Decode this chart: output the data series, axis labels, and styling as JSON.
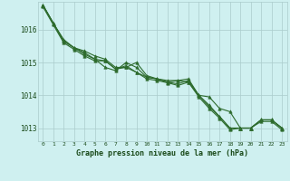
{
  "background_color": "#cff0f0",
  "grid_color": "#aacccc",
  "line_color": "#2d6b2d",
  "marker_color": "#2d6b2d",
  "xlabel": "Graphe pression niveau de la mer (hPa)",
  "xlabel_color": "#1a4a1a",
  "ylabel_color": "#1a4a1a",
  "xlim": [
    -0.5,
    23.5
  ],
  "ylim": [
    1012.6,
    1016.85
  ],
  "yticks": [
    1013,
    1014,
    1015,
    1016
  ],
  "xticks": [
    0,
    1,
    2,
    3,
    4,
    5,
    6,
    7,
    8,
    9,
    10,
    11,
    12,
    13,
    14,
    15,
    16,
    17,
    18,
    19,
    20,
    21,
    22,
    23
  ],
  "series": [
    [
      1016.75,
      1016.2,
      1015.7,
      1015.45,
      1015.35,
      1015.2,
      1015.1,
      1014.85,
      1014.85,
      1015.0,
      1014.6,
      1014.5,
      1014.45,
      1014.45,
      1014.4,
      1014.0,
      1013.95,
      1013.6,
      1013.5,
      1013.0,
      1013.0,
      1013.25,
      1013.25,
      1013.0
    ],
    [
      1016.75,
      1016.2,
      1015.65,
      1015.45,
      1015.25,
      1015.1,
      1015.05,
      1014.8,
      1014.9,
      1014.7,
      1014.55,
      1014.5,
      1014.4,
      1014.35,
      1014.45,
      1014.0,
      1013.7,
      1013.35,
      1013.0,
      1013.0,
      1013.0,
      1013.25,
      1013.25,
      1013.0
    ],
    [
      1016.75,
      1016.2,
      1015.65,
      1015.45,
      1015.3,
      1015.1,
      1014.85,
      1014.75,
      1015.0,
      1014.85,
      1014.55,
      1014.5,
      1014.4,
      1014.45,
      1014.5,
      1014.0,
      1013.65,
      1013.35,
      1013.0,
      1013.0,
      1013.0,
      1013.25,
      1013.25,
      1013.0
    ],
    [
      1016.7,
      1016.15,
      1015.6,
      1015.4,
      1015.2,
      1015.05,
      1015.05,
      1014.8,
      1014.85,
      1014.7,
      1014.5,
      1014.45,
      1014.38,
      1014.3,
      1014.4,
      1013.95,
      1013.6,
      1013.3,
      1012.95,
      1013.0,
      1013.0,
      1013.2,
      1013.2,
      1012.95
    ]
  ],
  "marker_size": 2.5,
  "line_width": 0.8
}
